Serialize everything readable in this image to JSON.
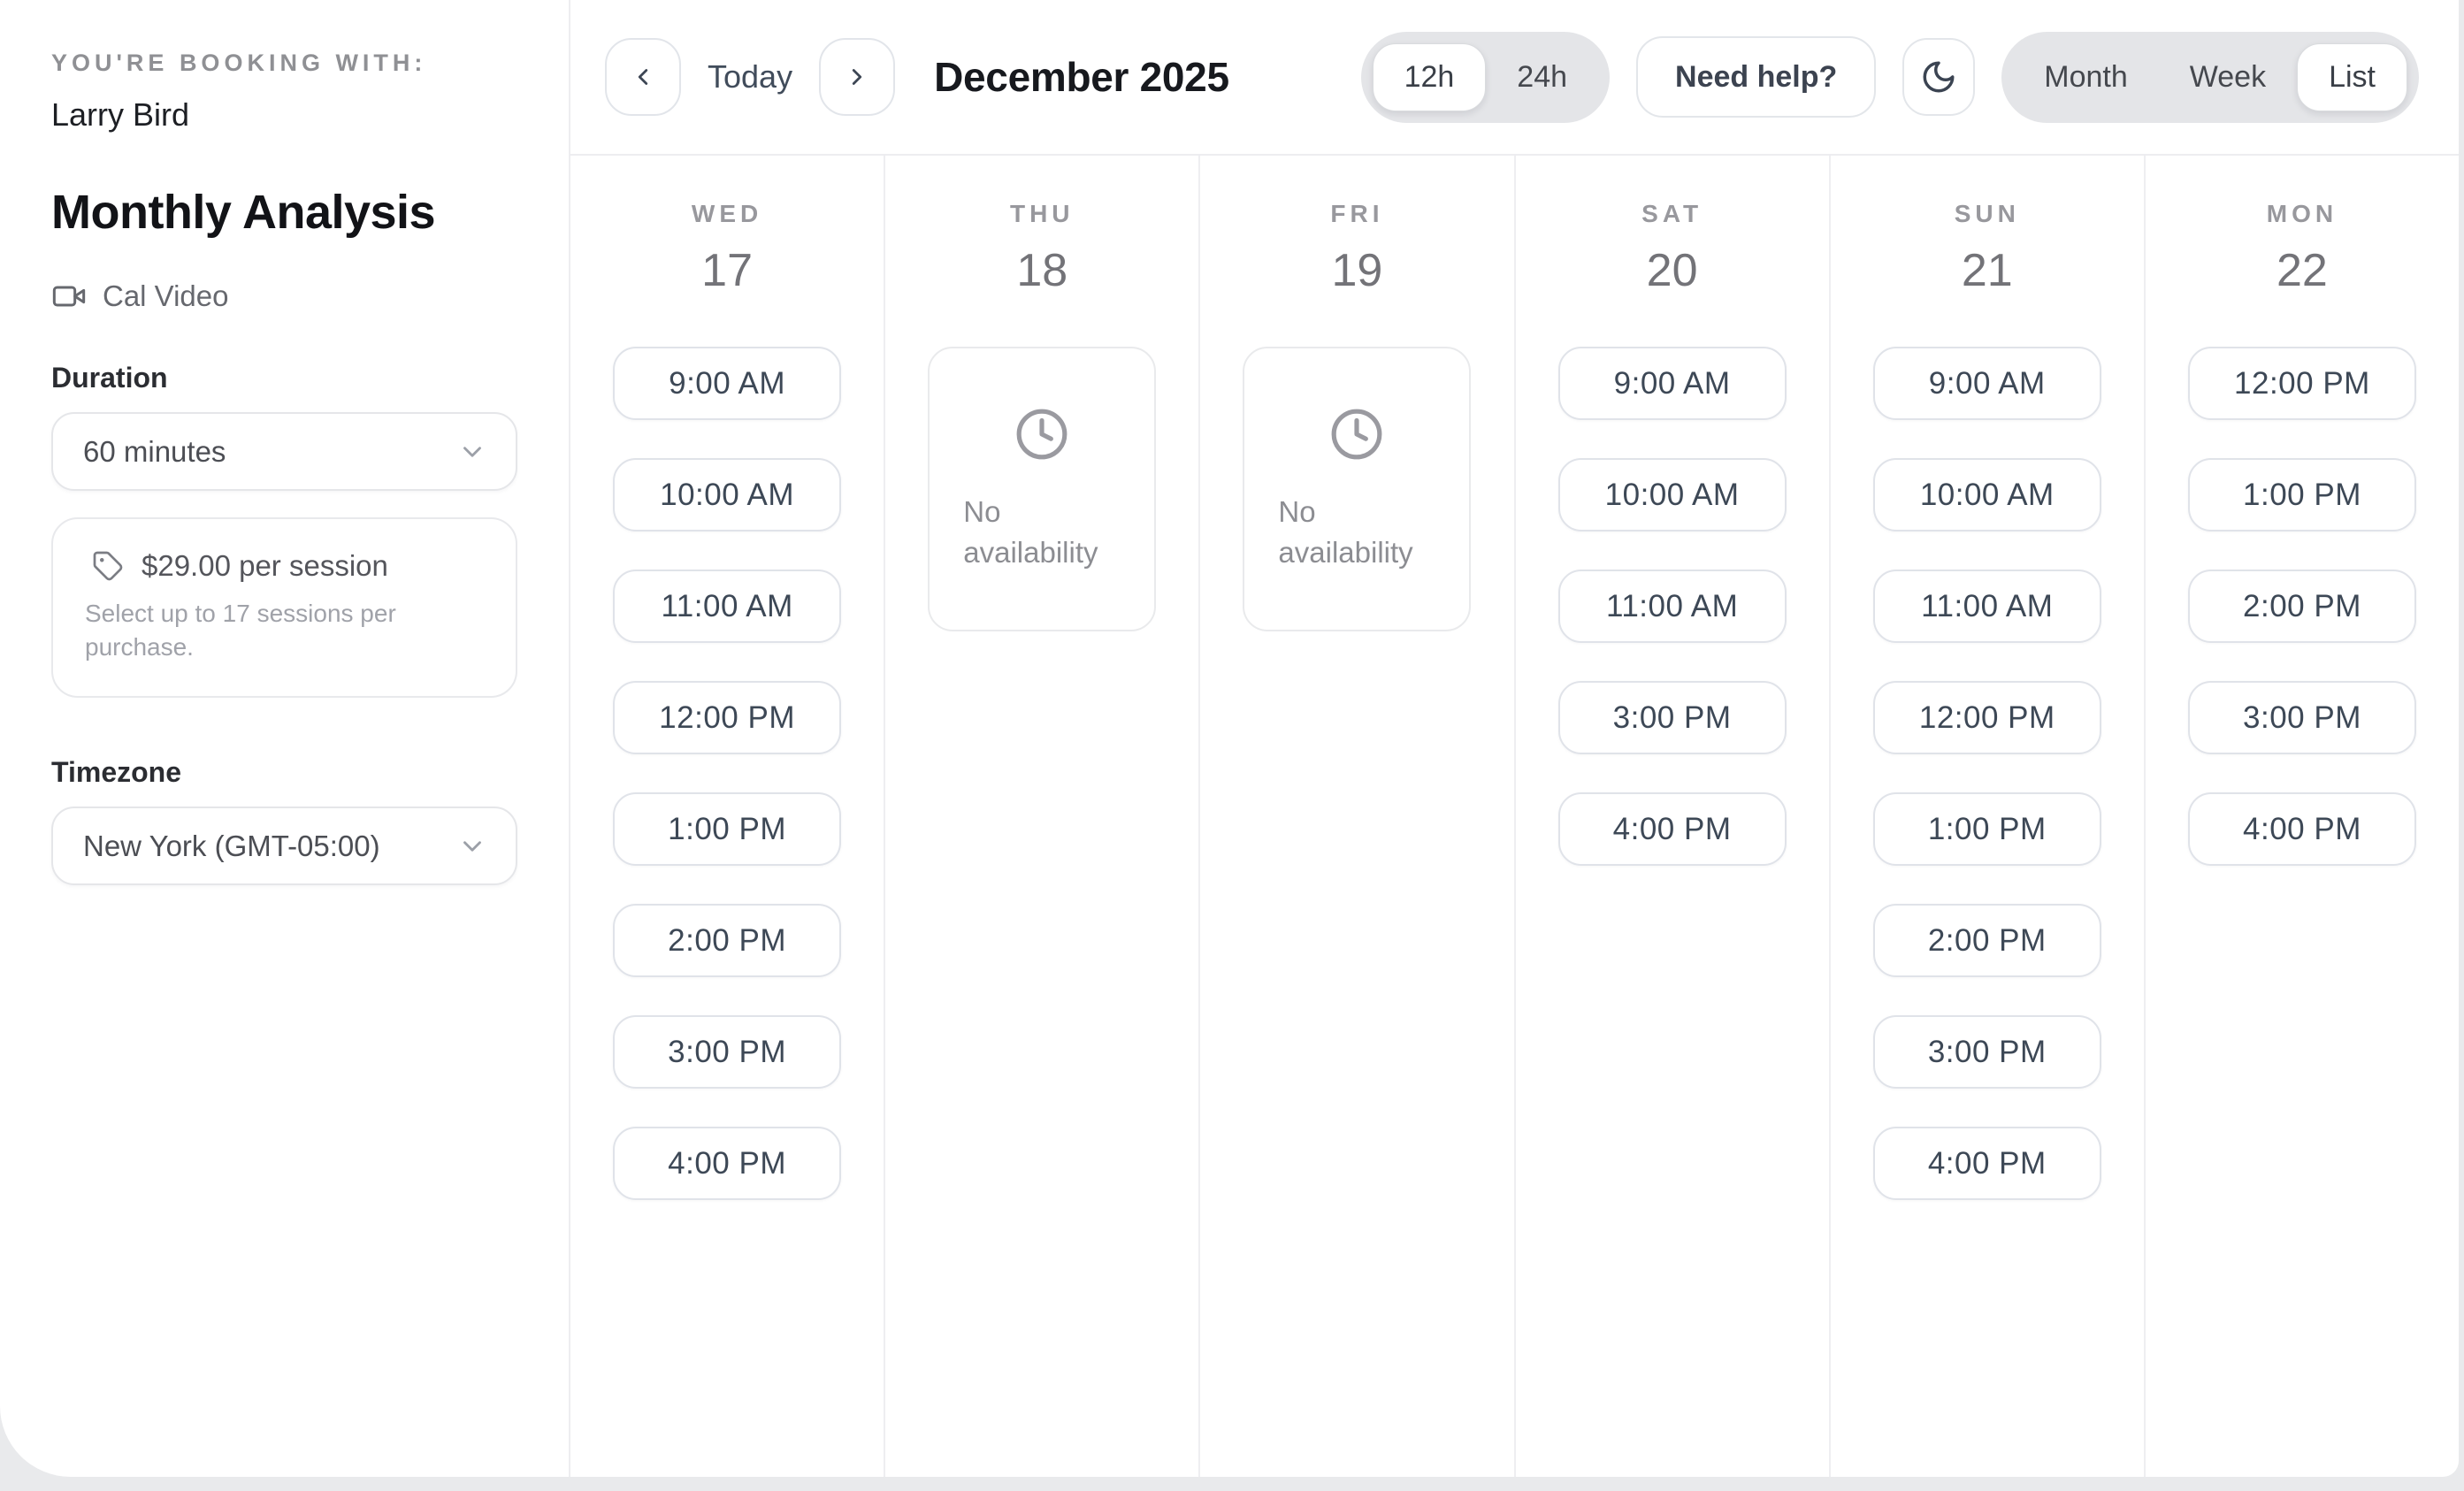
{
  "colors": {
    "page_backdrop": "#e9eaec",
    "card_background": "#ffffff",
    "divider": "#ededf0",
    "slot_border": "#e0e3e9",
    "slot_text": "#3d4856",
    "muted_text": "#8f9094",
    "segmented_background": "#e4e5e8"
  },
  "sidebar": {
    "booking_with_label": "YOU'RE BOOKING WITH:",
    "host_name": "Larry Bird",
    "event_title": "Monthly Analysis",
    "location_label": "Cal Video",
    "duration": {
      "label": "Duration",
      "value": "60 minutes"
    },
    "price": {
      "amount": "$29.00 per session",
      "note": "Select up to 17 sessions per purchase."
    },
    "timezone": {
      "label": "Timezone",
      "value": "New York (GMT-05:00)"
    }
  },
  "toolbar": {
    "today_label": "Today",
    "month_title": "December 2025",
    "time_format": {
      "options": [
        "12h",
        "24h"
      ],
      "selected": "12h"
    },
    "help_label": "Need help?",
    "view_switcher": {
      "options": [
        "Month",
        "Week",
        "List"
      ],
      "selected": "List"
    }
  },
  "calendar": {
    "no_availability_label": "No availability",
    "days": [
      {
        "weekday": "WED",
        "date": "17",
        "slots": [
          "9:00 AM",
          "10:00 AM",
          "11:00 AM",
          "12:00 PM",
          "1:00 PM",
          "2:00 PM",
          "3:00 PM",
          "4:00 PM"
        ]
      },
      {
        "weekday": "THU",
        "date": "18",
        "slots": []
      },
      {
        "weekday": "FRI",
        "date": "19",
        "slots": []
      },
      {
        "weekday": "SAT",
        "date": "20",
        "slots": [
          "9:00 AM",
          "10:00 AM",
          "11:00 AM",
          "3:00 PM",
          "4:00 PM"
        ]
      },
      {
        "weekday": "SUN",
        "date": "21",
        "slots": [
          "9:00 AM",
          "10:00 AM",
          "11:00 AM",
          "12:00 PM",
          "1:00 PM",
          "2:00 PM",
          "3:00 PM",
          "4:00 PM"
        ]
      },
      {
        "weekday": "MON",
        "date": "22",
        "slots": [
          "12:00 PM",
          "1:00 PM",
          "2:00 PM",
          "3:00 PM",
          "4:00 PM"
        ]
      }
    ]
  }
}
